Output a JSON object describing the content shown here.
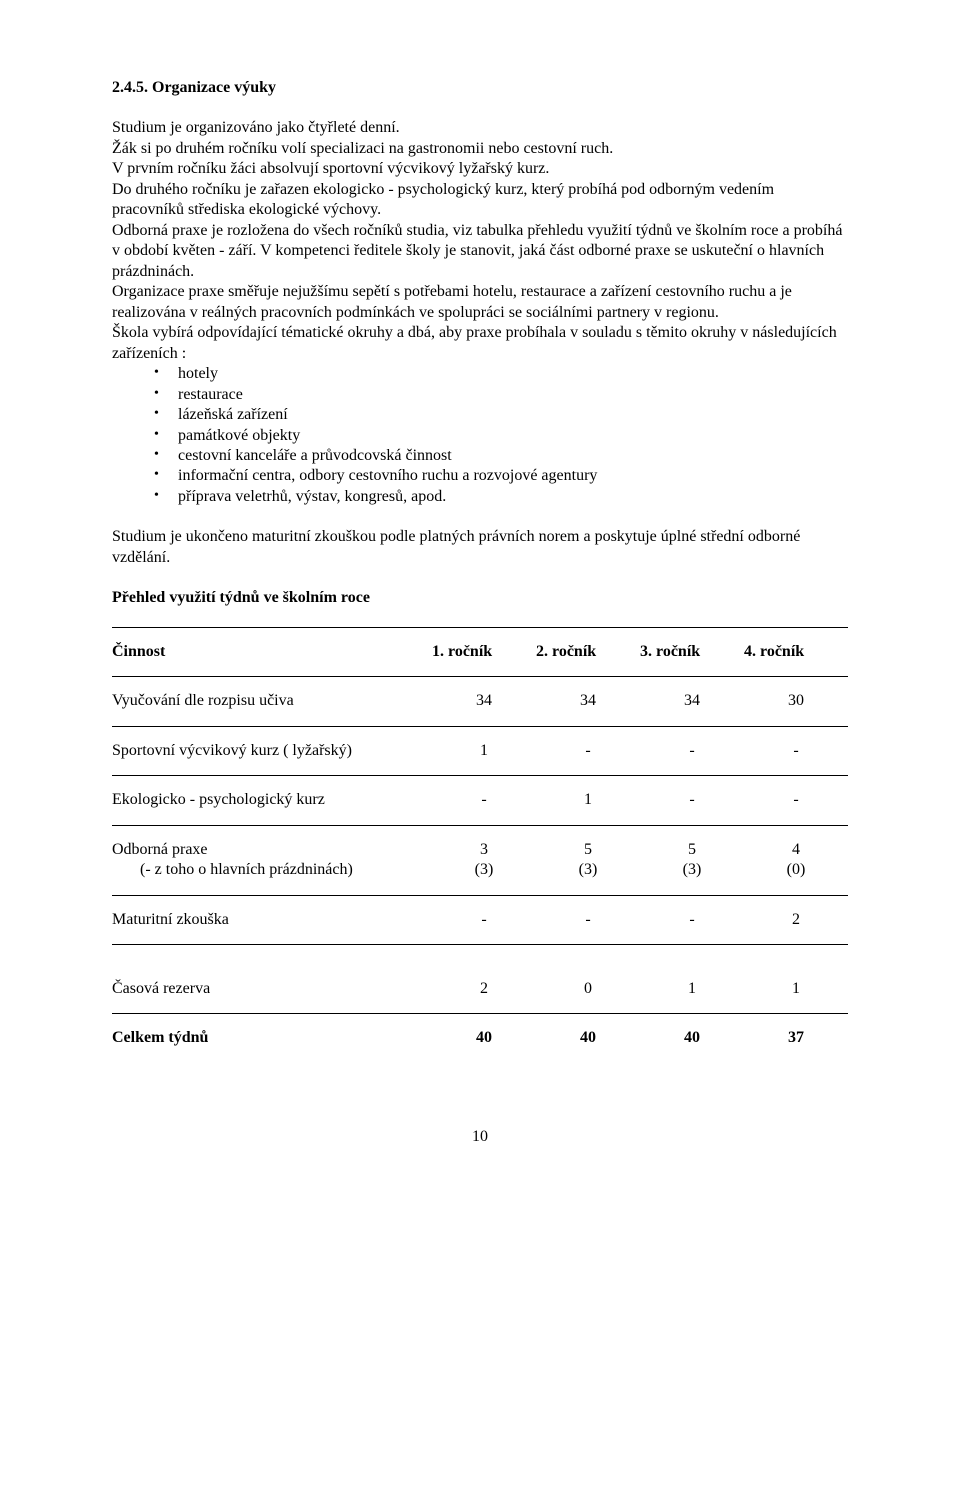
{
  "heading": "2.4.5. Organizace výuky",
  "p1": "Studium je organizováno jako čtyřleté denní.",
  "p2": "Žák si po druhém ročníku volí specializaci na gastronomii nebo cestovní ruch.",
  "p3": "V prvním ročníku žáci absolvují sportovní výcvikový lyžařský kurz.",
  "p4": "Do druhého ročníku je zařazen ekologicko - psychologický kurz, který probíhá pod odborným vedením pracovníků střediska ekologické výchovy.",
  "p5": "Odborná praxe je rozložena do všech ročníků studia, viz tabulka přehledu využití týdnů ve školním roce a probíhá v období květen - září. V kompetenci ředitele školy je stanovit, jaká část odborné praxe se uskuteční o hlavních prázdninách.",
  "p6": "Organizace praxe směřuje nejužšímu sepětí s potřebami hotelu, restaurace a zařízení cestovního ruchu a je realizována v reálných pracovních podmínkách ve spolupráci se sociálními partnery v regionu.",
  "p7": "Škola vybírá odpovídající tématické okruhy a dbá, aby praxe probíhala v souladu s těmito okruhy v následujících zařízeních :",
  "bullets": [
    "hotely",
    "restaurace",
    "lázeňská zařízení",
    "památkové objekty",
    "cestovní kanceláře a průvodcovská činnost",
    "informační centra, odbory cestovního ruchu a  rozvojové agentury",
    "příprava veletrhů, výstav, kongresů, apod."
  ],
  "p8": "Studium je ukončeno maturitní zkouškou podle platných právních norem a poskytuje úplné střední odborné vzdělání.",
  "subheading": "Přehled využití týdnů ve školním roce",
  "table": {
    "header": {
      "c0": "Činnost",
      "c1": "1. ročník",
      "c2": "2. ročník",
      "c3": "3. ročník",
      "c4": "4. ročník"
    },
    "rows": [
      {
        "label": "Vyučování dle rozpisu učiva",
        "v1": "34",
        "v2": "34",
        "v3": "34",
        "v4": "30"
      },
      {
        "label": "Sportovní výcvikový kurz ( lyžařský)",
        "v1": "1",
        "v2": "-",
        "v3": "-",
        "v4": "-"
      },
      {
        "label": "Ekologicko - psychologický kurz",
        "v1": "-",
        "v2": "1",
        "v3": "-",
        "v4": "-"
      }
    ],
    "praxe": {
      "label": "Odborná praxe",
      "sublabel": "(- z toho o hlavních prázdninách)",
      "v1a": "3",
      "v1b": "(3)",
      "v2a": "5",
      "v2b": "(3)",
      "v3a": "5",
      "v3b": "(3)",
      "v4a": "4",
      "v4b": "(0)"
    },
    "maturita": {
      "label": "Maturitní zkouška",
      "v1": "-",
      "v2": "-",
      "v3": "-",
      "v4": "2"
    },
    "rezerva": {
      "label": "Časová rezerva",
      "v1": "2",
      "v2": "0",
      "v3": "1",
      "v4": "1"
    },
    "total": {
      "label": "Celkem týdnů",
      "v1": "40",
      "v2": "40",
      "v3": "40",
      "v4": "37"
    }
  },
  "pageNumber": "10"
}
